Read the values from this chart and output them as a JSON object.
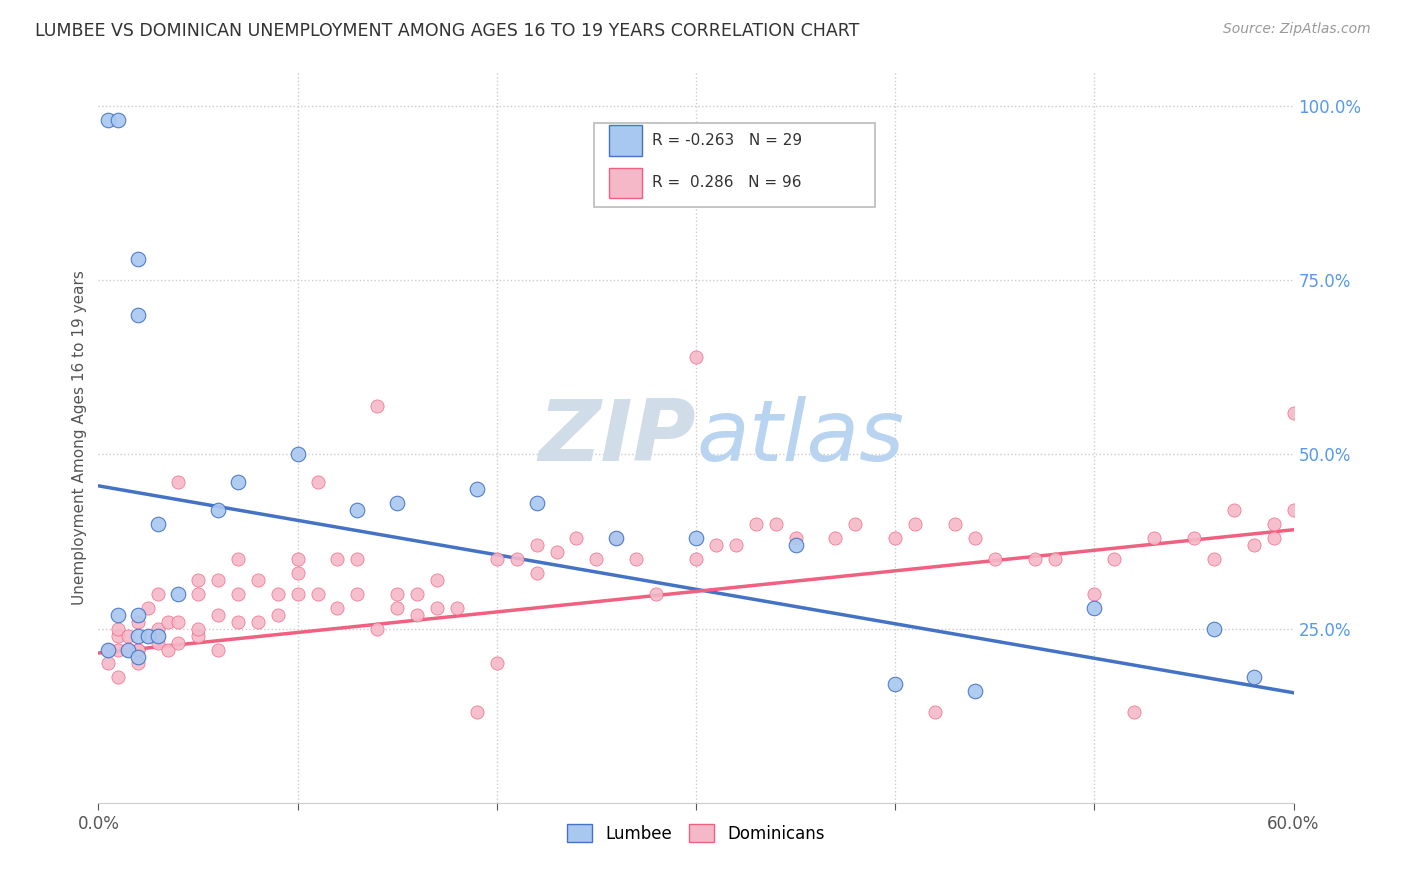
{
  "title": "LUMBEE VS DOMINICAN UNEMPLOYMENT AMONG AGES 16 TO 19 YEARS CORRELATION CHART",
  "source": "Source: ZipAtlas.com",
  "ylabel": "Unemployment Among Ages 16 to 19 years",
  "xlim": [
    0.0,
    0.6
  ],
  "ylim": [
    0.0,
    1.05
  ],
  "xtick_vals": [
    0.0,
    0.1,
    0.2,
    0.3,
    0.4,
    0.5,
    0.6
  ],
  "xticklabels": [
    "0.0%",
    "",
    "",
    "",
    "",
    "",
    "60.0%"
  ],
  "ytick_vals_right": [
    0.0,
    0.25,
    0.5,
    0.75,
    1.0
  ],
  "yticklabels_right": [
    "",
    "25.0%",
    "50.0%",
    "75.0%",
    "100.0%"
  ],
  "lumbee_R": -0.263,
  "lumbee_N": 29,
  "dominican_R": 0.286,
  "dominican_N": 96,
  "lumbee_color": "#a8c8f0",
  "dominican_color": "#f5b8c8",
  "lumbee_line_color": "#4472C4",
  "dominican_line_color": "#F06080",
  "watermark_color": "#dce8f5",
  "lumbee_line_intercept": 0.455,
  "lumbee_line_slope": -0.495,
  "dominican_line_intercept": 0.215,
  "dominican_line_slope": 0.295,
  "lumbee_x": [
    0.005,
    0.01,
    0.015,
    0.02,
    0.02,
    0.02,
    0.025,
    0.03,
    0.03,
    0.04,
    0.005,
    0.01,
    0.02,
    0.02,
    0.06,
    0.07,
    0.1,
    0.13,
    0.15,
    0.19,
    0.22,
    0.26,
    0.3,
    0.35,
    0.4,
    0.44,
    0.5,
    0.56,
    0.58
  ],
  "lumbee_y": [
    0.22,
    0.27,
    0.22,
    0.24,
    0.27,
    0.21,
    0.24,
    0.24,
    0.4,
    0.3,
    0.98,
    0.98,
    0.78,
    0.7,
    0.42,
    0.46,
    0.5,
    0.42,
    0.43,
    0.45,
    0.43,
    0.38,
    0.38,
    0.37,
    0.17,
    0.16,
    0.28,
    0.25,
    0.18
  ],
  "dominican_x": [
    0.005,
    0.005,
    0.01,
    0.01,
    0.01,
    0.01,
    0.015,
    0.015,
    0.02,
    0.02,
    0.02,
    0.02,
    0.025,
    0.025,
    0.03,
    0.03,
    0.03,
    0.03,
    0.035,
    0.035,
    0.04,
    0.04,
    0.04,
    0.05,
    0.05,
    0.05,
    0.05,
    0.06,
    0.06,
    0.06,
    0.07,
    0.07,
    0.07,
    0.08,
    0.08,
    0.09,
    0.09,
    0.1,
    0.1,
    0.1,
    0.11,
    0.11,
    0.12,
    0.12,
    0.13,
    0.13,
    0.14,
    0.14,
    0.15,
    0.15,
    0.16,
    0.16,
    0.17,
    0.17,
    0.18,
    0.19,
    0.2,
    0.2,
    0.21,
    0.22,
    0.22,
    0.23,
    0.24,
    0.25,
    0.26,
    0.27,
    0.28,
    0.3,
    0.3,
    0.31,
    0.32,
    0.33,
    0.34,
    0.35,
    0.37,
    0.38,
    0.4,
    0.41,
    0.42,
    0.43,
    0.44,
    0.45,
    0.47,
    0.5,
    0.51,
    0.53,
    0.55,
    0.56,
    0.57,
    0.58,
    0.59,
    0.59,
    0.6,
    0.6,
    0.48,
    0.52
  ],
  "dominican_y": [
    0.22,
    0.2,
    0.22,
    0.24,
    0.18,
    0.25,
    0.22,
    0.24,
    0.22,
    0.26,
    0.22,
    0.2,
    0.24,
    0.28,
    0.23,
    0.24,
    0.25,
    0.3,
    0.22,
    0.26,
    0.23,
    0.26,
    0.46,
    0.24,
    0.25,
    0.3,
    0.32,
    0.22,
    0.27,
    0.32,
    0.26,
    0.3,
    0.35,
    0.26,
    0.32,
    0.27,
    0.3,
    0.3,
    0.33,
    0.35,
    0.3,
    0.46,
    0.28,
    0.35,
    0.3,
    0.35,
    0.25,
    0.57,
    0.28,
    0.3,
    0.27,
    0.3,
    0.28,
    0.32,
    0.28,
    0.13,
    0.2,
    0.35,
    0.35,
    0.33,
    0.37,
    0.36,
    0.38,
    0.35,
    0.38,
    0.35,
    0.3,
    0.35,
    0.64,
    0.37,
    0.37,
    0.4,
    0.4,
    0.38,
    0.38,
    0.4,
    0.38,
    0.4,
    0.13,
    0.4,
    0.38,
    0.35,
    0.35,
    0.3,
    0.35,
    0.38,
    0.38,
    0.35,
    0.42,
    0.37,
    0.4,
    0.38,
    0.42,
    0.56,
    0.35,
    0.13
  ]
}
